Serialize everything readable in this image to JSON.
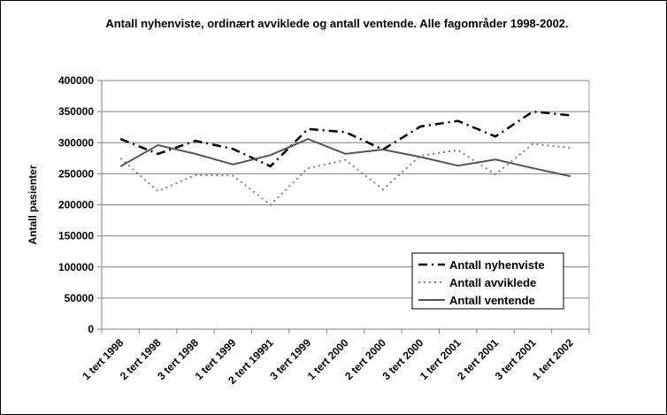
{
  "chart_data": {
    "type": "line",
    "title": "Antall nyhenviste, ordinært avviklede og antall ventende. Alle fagområder 1998-2002.",
    "xlabel": "",
    "ylabel": "Antall pasienter",
    "ylim": [
      0,
      400000
    ],
    "yticks": [
      "0",
      "50000",
      "100000",
      "150000",
      "200000",
      "250000",
      "300000",
      "350000",
      "400000"
    ],
    "grid": true,
    "legend_position": "bottom-right",
    "categories": [
      "1 tert 1998",
      "2 tert 1998",
      "3 tert 1998",
      "1 tert 1999",
      "2 tert 19991",
      "3 tert 1999",
      "1 tert 2000",
      "2 tert 2000",
      "3 tert 2000",
      "1 tert 2001",
      "2 tert 2001",
      "3 tert 2001",
      "1 tert 2002"
    ],
    "series": [
      {
        "name": "Antall nyhenviste",
        "style": "dash-dot",
        "color": "#000000",
        "values": [
          306000,
          282000,
          303000,
          290000,
          262000,
          322000,
          317000,
          289000,
          326000,
          335000,
          310000,
          350000,
          344000
        ]
      },
      {
        "name": "Antall avviklede",
        "style": "dotted",
        "color": "#808080",
        "values": [
          275000,
          222000,
          248000,
          247000,
          200000,
          259000,
          272000,
          225000,
          279000,
          288000,
          249000,
          298000,
          292000
        ]
      },
      {
        "name": "Antall ventende",
        "style": "solid",
        "color": "#555555",
        "values": [
          262000,
          296000,
          282000,
          265000,
          280000,
          306000,
          282000,
          289000,
          277000,
          263000,
          273000,
          259000,
          246000
        ]
      }
    ]
  }
}
